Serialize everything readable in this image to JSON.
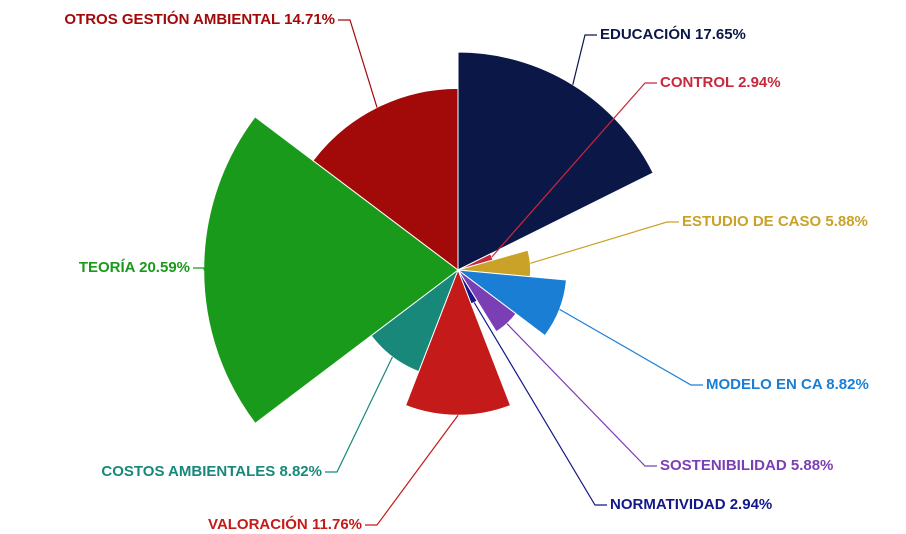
{
  "chart_data": {
    "type": "polar-area",
    "categories": [
      "EDUCACIÓN",
      "CONTROL",
      "ESTUDIO DE CASO",
      "MODELO EN CA",
      "SOSTENIBILIDAD",
      "NORMATIVIDAD",
      "VALORACIÓN",
      "COSTOS AMBIENTALES",
      "TEORÍA",
      "OTROS GESTIÓN AMBIENTAL"
    ],
    "values": [
      17.65,
      2.94,
      5.88,
      8.82,
      5.88,
      2.94,
      11.76,
      8.82,
      20.59,
      14.71
    ],
    "value_labels": [
      "17.65%",
      "2.94%",
      "5.88%",
      "8.82%",
      "5.88%",
      "2.94%",
      "11.76%",
      "8.82%",
      "20.59%",
      "14.71%"
    ],
    "colors": [
      "#0b1747",
      "#c8283c",
      "#c9a227",
      "#1a7fd4",
      "#7b3fb5",
      "#12178a",
      "#c41a1a",
      "#17887a",
      "#1a9a1a",
      "#a20a0a"
    ]
  }
}
